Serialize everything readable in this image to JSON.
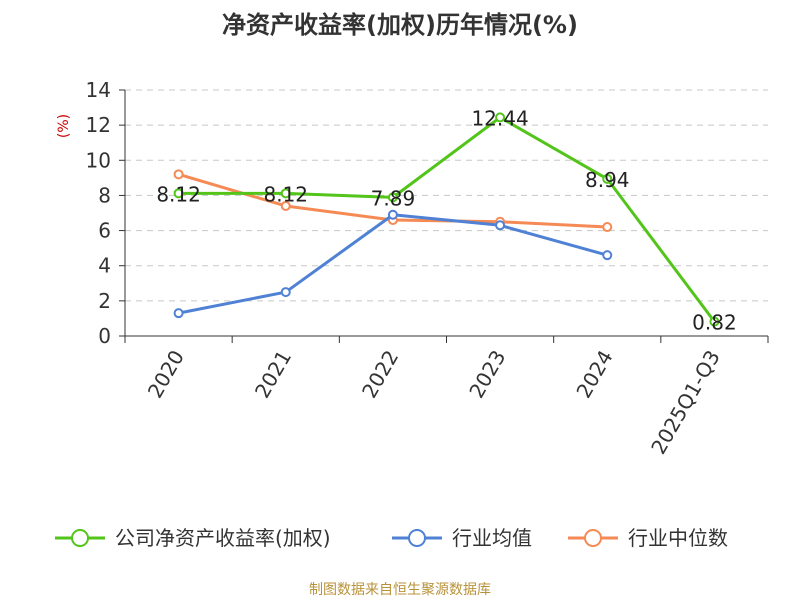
{
  "chart_data": {
    "type": "line",
    "title": "净资产收益率(加权)历年情况(%)",
    "ylabel": "(%)",
    "xlabel": "",
    "categories": [
      "2020",
      "2021",
      "2022",
      "2023",
      "2024",
      "2025Q1-Q3"
    ],
    "ylim": [
      0,
      14
    ],
    "yticks": [
      0,
      2,
      4,
      6,
      8,
      10,
      12,
      14
    ],
    "grid": true,
    "legend_position": "bottom",
    "series": [
      {
        "name": "公司净资产收益率(加权)",
        "color": "#52c41a",
        "values": [
          8.12,
          8.12,
          7.89,
          12.44,
          8.94,
          0.82
        ],
        "labels": [
          "8.12",
          "8.12",
          "7.89",
          "12.44",
          "8.94",
          "0.82"
        ]
      },
      {
        "name": "行业均值",
        "color": "#4f81d4",
        "values": [
          1.3,
          2.5,
          6.9,
          6.3,
          4.6,
          null
        ]
      },
      {
        "name": "行业中位数",
        "color": "#f58a55",
        "values": [
          9.2,
          7.4,
          6.6,
          6.5,
          6.2,
          null
        ]
      }
    ],
    "source": "制图数据来自恒生聚源数据库"
  }
}
